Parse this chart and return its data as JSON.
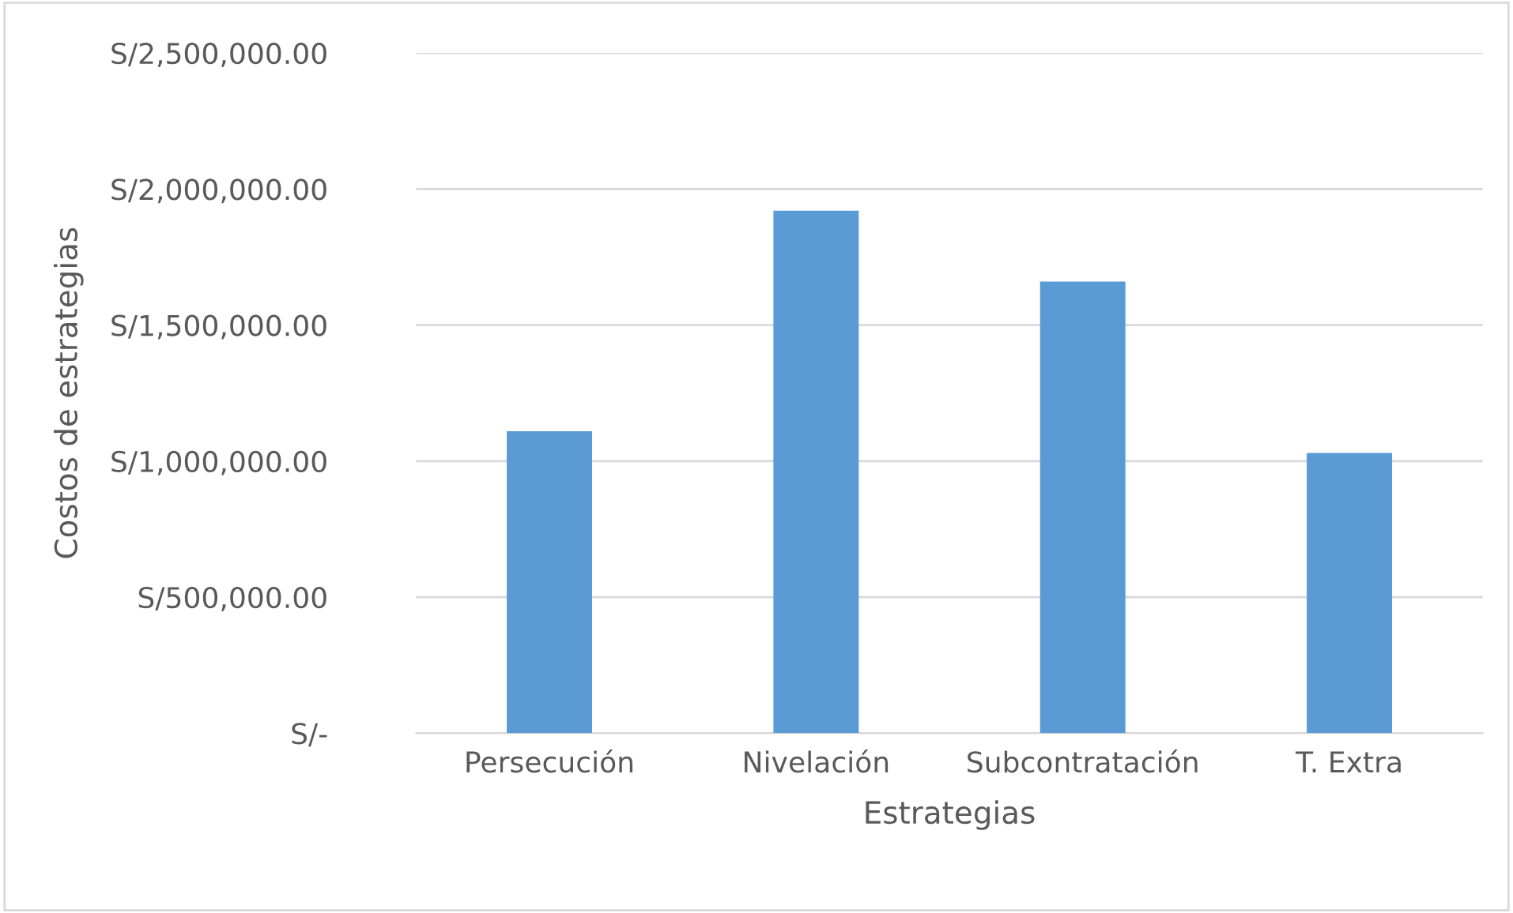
{
  "chart_data": {
    "type": "bar",
    "xlabel": "Estrategias",
    "ylabel": "Costos de estrategias",
    "categories": [
      "Persecución",
      "Nivelación",
      "Subcontratación",
      "T. Extra"
    ],
    "values": [
      1110000,
      1920000,
      1660000,
      1030000
    ],
    "color": "#5b9bd5",
    "ylim": [
      0,
      2500000
    ],
    "yticks": [
      {
        "value": 0,
        "label": "S/-"
      },
      {
        "value": 500000,
        "label": "S/500,000.00"
      },
      {
        "value": 1000000,
        "label": "S/1,000,000.00"
      },
      {
        "value": 1500000,
        "label": "S/1,500,000.00"
      },
      {
        "value": 2000000,
        "label": "S/2,000,000.00"
      },
      {
        "value": 2500000,
        "label": "S/2,500,000.00"
      }
    ],
    "grid": "y"
  }
}
